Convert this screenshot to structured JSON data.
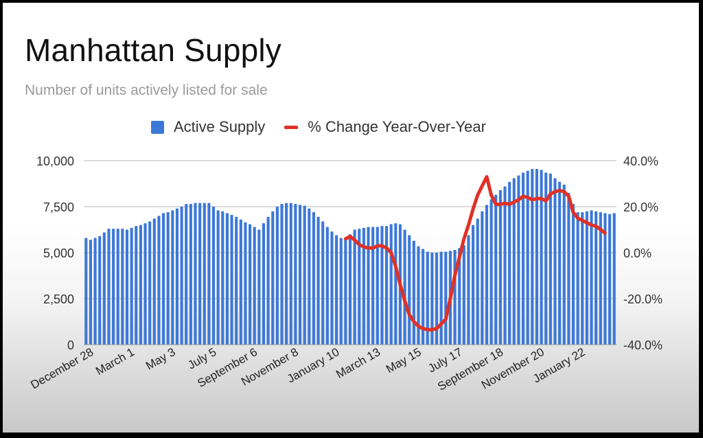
{
  "chart_data": {
    "type": "bar+line",
    "title": "Manhattan Supply",
    "subtitle": "Number of units actively listed for sale",
    "legend": {
      "position": "top",
      "entries": [
        {
          "name": "Active Supply",
          "type": "bar",
          "color": "#3c78d8"
        },
        {
          "name": "% Change Year-Over-Year",
          "type": "line",
          "color": "#e03127"
        }
      ]
    },
    "xlabel": "",
    "x_tick_labels": [
      "December 28",
      "March 1",
      "May 3",
      "July 5",
      "September 6",
      "November 8",
      "January 10",
      "March 13",
      "May 15",
      "July 17",
      "September 18",
      "November 20",
      "January 22"
    ],
    "y_left": {
      "label": "",
      "ticks": [
        "0",
        "2,500",
        "5,000",
        "7,500",
        "10,000"
      ],
      "range": [
        0,
        10000
      ]
    },
    "y_right": {
      "label": "",
      "ticks": [
        "-40.0%",
        "-20.0%",
        "0.0%",
        "20.0%",
        "40.0%"
      ],
      "range": [
        -40,
        40
      ]
    },
    "grid": true,
    "series": [
      {
        "name": "Active Supply",
        "axis": "left",
        "values": [
          5800,
          5700,
          5800,
          5900,
          6100,
          6300,
          6300,
          6300,
          6300,
          6250,
          6350,
          6450,
          6500,
          6600,
          6700,
          6850,
          7000,
          7150,
          7200,
          7300,
          7400,
          7500,
          7650,
          7650,
          7700,
          7700,
          7700,
          7700,
          7500,
          7300,
          7250,
          7150,
          7050,
          6950,
          6800,
          6650,
          6550,
          6400,
          6250,
          6600,
          6950,
          7250,
          7500,
          7650,
          7700,
          7700,
          7650,
          7600,
          7550,
          7400,
          7200,
          6950,
          6700,
          6400,
          6150,
          5950,
          5800,
          5700,
          6000,
          6250,
          6300,
          6350,
          6400,
          6400,
          6400,
          6450,
          6450,
          6550,
          6600,
          6550,
          6250,
          5950,
          5650,
          5350,
          5200,
          5050,
          5000,
          5000,
          5050,
          5050,
          5100,
          5150,
          5250,
          5400,
          5950,
          6500,
          6850,
          7250,
          7600,
          7900,
          8150,
          8400,
          8600,
          8850,
          9050,
          9200,
          9350,
          9450,
          9550,
          9550,
          9500,
          9350,
          9300,
          9050,
          8850,
          8700,
          8250,
          7650,
          7200,
          7200,
          7250,
          7300,
          7250,
          7200,
          7150,
          7100,
          7150
        ]
      },
      {
        "name": "% Change Year-Over-Year",
        "axis": "right",
        "start_index": 57,
        "values": [
          6.0,
          7.0,
          5.5,
          3.5,
          2.5,
          2.0,
          2.0,
          3.0,
          3.0,
          2.0,
          0.0,
          -6.0,
          -14.0,
          -21.0,
          -27.0,
          -30.0,
          -32.0,
          -33.0,
          -33.5,
          -33.5,
          -33.0,
          -31.0,
          -29.0,
          -20.0,
          -10.0,
          -2.0,
          6.0,
          12.0,
          19.0,
          25.0,
          29.0,
          33.0,
          25.0,
          21.0,
          21.0,
          21.5,
          21.0,
          22.0,
          23.0,
          24.5,
          24.0,
          23.0,
          23.5,
          23.5,
          22.5,
          25.5,
          26.5,
          27.0,
          26.5,
          24.5,
          17.5,
          15.0,
          14.0,
          13.0,
          12.0,
          11.5,
          10.0,
          8.5
        ]
      }
    ]
  },
  "colors": {
    "bar": "#3c78d8",
    "line": "#e03127",
    "grid": "#d0d0d0",
    "frame": "#000000"
  }
}
